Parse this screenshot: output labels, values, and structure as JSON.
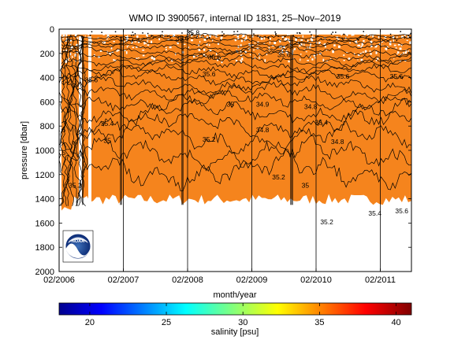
{
  "chart_data": {
    "type": "heatmap",
    "title": "WMO ID 3900567, internal ID 1831, 25–Nov–2019",
    "xlabel": "month/year",
    "ylabel": "pressure [dbar]",
    "x_ticks": [
      "02/2006",
      "02/2007",
      "02/2008",
      "02/2009",
      "02/2010",
      "02/2011"
    ],
    "y_ticks": [
      0,
      200,
      400,
      600,
      800,
      1000,
      1200,
      1400,
      1600,
      1800,
      2000
    ],
    "ylim": [
      0,
      2000
    ],
    "y_reversed": true,
    "colorbar": {
      "label": "salinity [psu]",
      "range": [
        18,
        41
      ],
      "ticks": [
        20,
        25,
        30,
        35,
        40
      ]
    },
    "field_color": "#f5841d",
    "max_profile_depth": 1450,
    "contour_labels": [
      {
        "text": "35.8",
        "x": "2008-02",
        "y": 28
      },
      {
        "text": "35.6",
        "x": "2007-12",
        "y": 75
      },
      {
        "text": "35.6",
        "x": "2008-06",
        "y": 230
      },
      {
        "text": "35.6",
        "x": "2006-07",
        "y": 420
      },
      {
        "text": "35.6",
        "x": "2008-05",
        "y": 370
      },
      {
        "text": "35.6",
        "x": "2009-07",
        "y": 210
      },
      {
        "text": "35.6",
        "x": "2010-06",
        "y": 390
      },
      {
        "text": "35.6",
        "x": "2011-04",
        "y": 390
      },
      {
        "text": "35.6",
        "x": "2011-05",
        "y": 1500
      },
      {
        "text": "35.4",
        "x": "2006-10",
        "y": 780
      },
      {
        "text": "35.4",
        "x": "2010-02",
        "y": 770
      },
      {
        "text": "35.4",
        "x": "2011-00",
        "y": 1520
      },
      {
        "text": "35.2",
        "x": "2008-05",
        "y": 910
      },
      {
        "text": "35.2",
        "x": "2009-06",
        "y": 1220
      },
      {
        "text": "35.2",
        "x": "2010-03",
        "y": 1590
      },
      {
        "text": "35.2",
        "x": "2006-04",
        "y": 1290
      },
      {
        "text": "35",
        "x": "2008-09",
        "y": 620
      },
      {
        "text": "35",
        "x": "2009-11",
        "y": 1290
      },
      {
        "text": "35",
        "x": "2006-10",
        "y": 920
      },
      {
        "text": "34.9",
        "x": "2009-03",
        "y": 620
      },
      {
        "text": "34.8",
        "x": "2009-03",
        "y": 830
      },
      {
        "text": "34.8",
        "x": "2010-00",
        "y": 640
      },
      {
        "text": "34.8",
        "x": "2010-05",
        "y": 930
      },
      {
        "text": "34.6",
        "x": "2006-01",
        "y": 830
      },
      {
        "text": "34.5",
        "x": "2006-01",
        "y": 1020
      }
    ],
    "source_logo": "NOAA"
  }
}
